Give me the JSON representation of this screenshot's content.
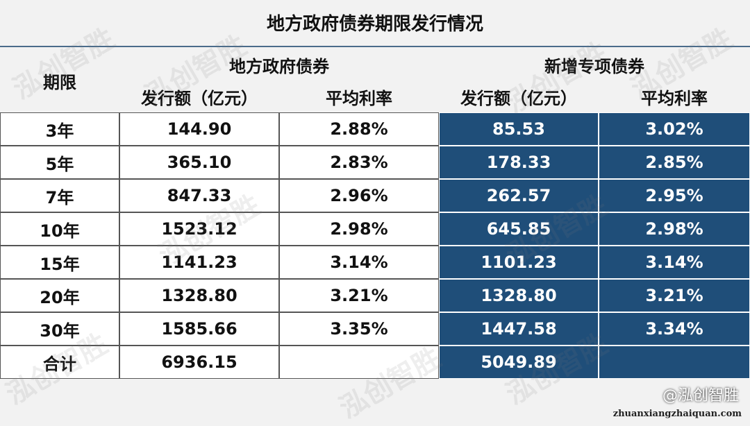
{
  "title": "地方政府债券期限发行情况",
  "header": {
    "period": "期限",
    "groups": [
      "地方政府债券",
      "新增专项债券"
    ],
    "columns": [
      "发行额（亿元）",
      "平均利率",
      "发行额（亿元）",
      "平均利率"
    ]
  },
  "rows": [
    [
      "3年",
      "144.90",
      "2.88%",
      "85.53",
      "3.02%"
    ],
    [
      "5年",
      "365.10",
      "2.83%",
      "178.33",
      "2.85%"
    ],
    [
      "7年",
      "847.33",
      "2.96%",
      "262.57",
      "2.95%"
    ],
    [
      "10年",
      "1523.12",
      "2.98%",
      "645.85",
      "2.98%"
    ],
    [
      "15年",
      "1141.23",
      "3.14%",
      "1101.23",
      "3.14%"
    ],
    [
      "20年",
      "1328.80",
      "3.21%",
      "1328.80",
      "3.21%"
    ],
    [
      "30年",
      "1585.66",
      "3.35%",
      "1447.58",
      "3.34%"
    ]
  ],
  "total": {
    "label": "合计",
    "local_amount": "6936.15",
    "special_amount": "5049.89"
  },
  "watermark": "泓创智胜",
  "brand": "@泓创智胜",
  "site": "zhuanxiangzhaiquan.com"
}
